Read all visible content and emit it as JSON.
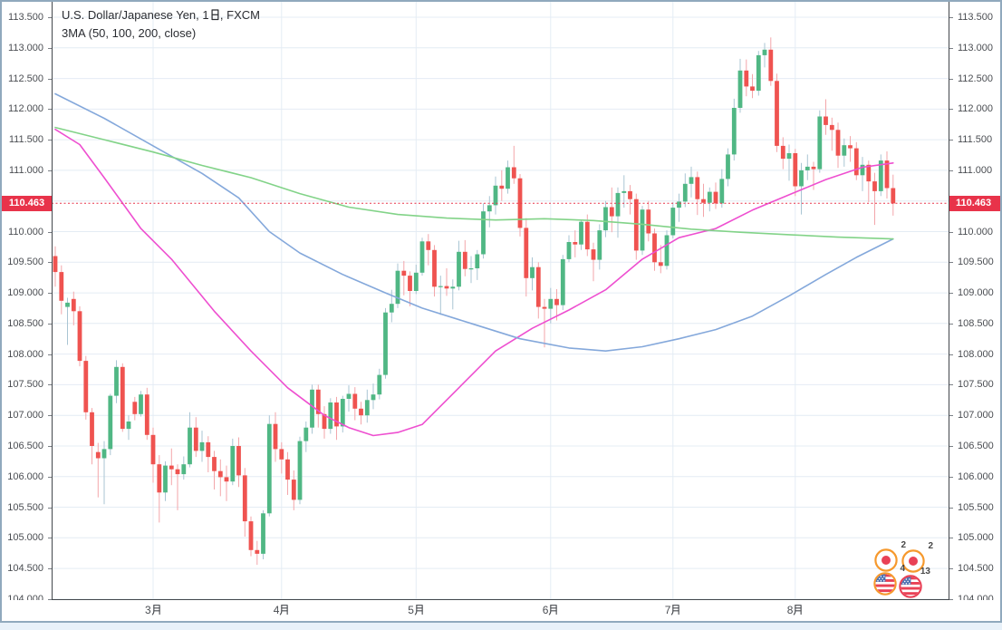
{
  "widget": {
    "title_line1": "U.S. Dollar/Japanese Yen, 1日, FXCM",
    "title_line2": "3MA (50, 100, 200, close)"
  },
  "colors": {
    "up_body": "#50b784",
    "down_body": "#ef5350",
    "up_wick": "#a9c5d3",
    "down_wick": "#f3a6aa",
    "ma50": "#ee4fd0",
    "ma100": "#84a8db",
    "ma200": "#82d388",
    "grid": "#e4ecf4",
    "axis_line": "#43474c",
    "axis_text": "#4a4d52",
    "price_line": "#e8334a",
    "title_text": "#2a2c31",
    "frame_border": "#90a9bd",
    "page_bg": "#e8f1f9"
  },
  "chart_data": {
    "type": "candlestick",
    "title": "U.S. Dollar/Japanese Yen, 1日, FXCM",
    "indicator": "3MA (50, 100, 200, close)",
    "last_price": 110.463,
    "last_price_label": "110.463",
    "y_axis": {
      "min": 104.0,
      "max": 113.5,
      "step": 0.5,
      "labels": [
        "113.500",
        "113.000",
        "112.500",
        "112.000",
        "111.500",
        "111.000",
        "110.500",
        "110.000",
        "109.500",
        "109.000",
        "108.500",
        "108.000",
        "107.500",
        "107.000",
        "106.500",
        "106.000",
        "105.500",
        "105.000",
        "104.500",
        "104.000"
      ]
    },
    "x_axis": {
      "months": [
        {
          "label": "3月",
          "index": 16
        },
        {
          "label": "4月",
          "index": 37
        },
        {
          "label": "5月",
          "index": 59
        },
        {
          "label": "6月",
          "index": 81
        },
        {
          "label": "7月",
          "index": 101
        },
        {
          "label": "8月",
          "index": 121
        }
      ]
    },
    "candles": [
      [
        109.6,
        109.76,
        109.1,
        109.34
      ],
      [
        109.34,
        109.45,
        108.65,
        108.87
      ],
      [
        108.77,
        108.92,
        108.15,
        108.84
      ],
      [
        108.9,
        109.02,
        108.47,
        108.7
      ],
      [
        108.7,
        108.78,
        107.8,
        107.89
      ],
      [
        107.89,
        107.97,
        106.93,
        107.05
      ],
      [
        107.05,
        107.12,
        106.2,
        106.5
      ],
      [
        106.4,
        106.55,
        105.66,
        106.3
      ],
      [
        106.3,
        106.58,
        105.55,
        106.45
      ],
      [
        106.45,
        107.35,
        106.35,
        107.32
      ],
      [
        107.32,
        107.9,
        107.2,
        107.79
      ],
      [
        107.79,
        107.85,
        106.73,
        106.78
      ],
      [
        106.78,
        107.0,
        106.6,
        106.9
      ],
      [
        107.22,
        107.3,
        106.92,
        107.02
      ],
      [
        107.02,
        107.4,
        106.98,
        107.34
      ],
      [
        107.34,
        107.45,
        106.6,
        106.68
      ],
      [
        106.68,
        106.8,
        105.9,
        106.2
      ],
      [
        106.2,
        106.35,
        105.25,
        105.74
      ],
      [
        105.74,
        106.25,
        105.6,
        106.18
      ],
      [
        106.18,
        106.46,
        105.86,
        106.12
      ],
      [
        106.12,
        106.2,
        105.45,
        106.04
      ],
      [
        106.04,
        106.33,
        105.95,
        106.2
      ],
      [
        106.2,
        107.05,
        106.15,
        106.8
      ],
      [
        106.8,
        106.97,
        106.32,
        106.42
      ],
      [
        106.42,
        106.75,
        106.24,
        106.56
      ],
      [
        106.56,
        106.66,
        106.07,
        106.32
      ],
      [
        106.32,
        106.42,
        105.79,
        106.09
      ],
      [
        106.09,
        106.28,
        105.68,
        105.99
      ],
      [
        105.99,
        106.18,
        105.6,
        105.92
      ],
      [
        105.92,
        106.62,
        105.86,
        106.5
      ],
      [
        106.5,
        106.64,
        105.83,
        106.02
      ],
      [
        106.02,
        106.14,
        105.02,
        105.27
      ],
      [
        105.27,
        105.35,
        104.7,
        104.8
      ],
      [
        104.8,
        104.95,
        104.56,
        104.74
      ],
      [
        104.74,
        105.45,
        104.65,
        105.4
      ],
      [
        105.4,
        107.0,
        105.35,
        106.86
      ],
      [
        106.86,
        107.05,
        106.24,
        106.45
      ],
      [
        106.45,
        106.56,
        106.05,
        106.28
      ],
      [
        106.28,
        106.4,
        105.7,
        105.95
      ],
      [
        105.95,
        106.1,
        105.45,
        105.62
      ],
      [
        105.62,
        106.65,
        105.55,
        106.58
      ],
      [
        106.58,
        106.9,
        106.4,
        106.8
      ],
      [
        106.8,
        107.5,
        106.7,
        107.42
      ],
      [
        107.42,
        107.5,
        106.8,
        107.02
      ],
      [
        107.02,
        107.15,
        106.62,
        106.78
      ],
      [
        106.78,
        107.28,
        106.7,
        107.21
      ],
      [
        107.21,
        107.3,
        106.6,
        106.82
      ],
      [
        106.82,
        107.32,
        106.72,
        107.27
      ],
      [
        107.27,
        107.49,
        107.06,
        107.35
      ],
      [
        107.35,
        107.46,
        106.92,
        107.11
      ],
      [
        107.11,
        107.22,
        106.85,
        107.0
      ],
      [
        107.0,
        107.42,
        106.88,
        107.25
      ],
      [
        107.25,
        107.52,
        107.1,
        107.34
      ],
      [
        107.34,
        107.76,
        107.26,
        107.66
      ],
      [
        107.66,
        108.75,
        107.6,
        108.68
      ],
      [
        108.68,
        109.05,
        108.52,
        108.82
      ],
      [
        108.82,
        109.48,
        108.75,
        109.36
      ],
      [
        109.36,
        109.52,
        108.96,
        109.28
      ],
      [
        109.28,
        109.35,
        108.78,
        109.03
      ],
      [
        109.03,
        109.46,
        108.98,
        109.33
      ],
      [
        109.33,
        109.9,
        109.28,
        109.84
      ],
      [
        109.84,
        109.96,
        109.45,
        109.7
      ],
      [
        109.7,
        109.78,
        108.94,
        109.1
      ],
      [
        109.1,
        109.28,
        108.64,
        109.11
      ],
      [
        109.11,
        109.4,
        108.95,
        109.07
      ],
      [
        109.07,
        109.22,
        108.73,
        109.1
      ],
      [
        109.1,
        109.85,
        109.04,
        109.67
      ],
      [
        109.67,
        109.86,
        109.27,
        109.39
      ],
      [
        109.39,
        109.6,
        109.16,
        109.4
      ],
      [
        109.4,
        109.7,
        109.21,
        109.63
      ],
      [
        109.63,
        110.46,
        109.56,
        110.33
      ],
      [
        110.33,
        110.58,
        110.07,
        110.43
      ],
      [
        110.43,
        110.9,
        110.28,
        110.75
      ],
      [
        110.75,
        111.0,
        110.5,
        110.7
      ],
      [
        110.7,
        111.16,
        110.62,
        111.05
      ],
      [
        111.05,
        111.4,
        110.78,
        110.87
      ],
      [
        110.87,
        110.94,
        109.92,
        110.06
      ],
      [
        110.06,
        110.22,
        108.94,
        109.24
      ],
      [
        109.24,
        109.58,
        109.04,
        109.42
      ],
      [
        109.42,
        109.5,
        108.58,
        108.77
      ],
      [
        108.77,
        108.9,
        108.11,
        108.74
      ],
      [
        108.74,
        109.08,
        108.5,
        108.9
      ],
      [
        108.9,
        109.06,
        108.55,
        108.8
      ],
      [
        108.8,
        109.62,
        108.72,
        109.55
      ],
      [
        109.55,
        109.94,
        109.5,
        109.83
      ],
      [
        109.83,
        110.02,
        109.58,
        109.79
      ],
      [
        109.79,
        110.2,
        109.7,
        110.16
      ],
      [
        110.16,
        110.28,
        109.6,
        109.71
      ],
      [
        109.71,
        109.82,
        109.19,
        109.54
      ],
      [
        109.54,
        110.12,
        109.38,
        110.02
      ],
      [
        110.02,
        110.5,
        109.91,
        110.4
      ],
      [
        110.4,
        110.72,
        109.99,
        110.25
      ],
      [
        110.25,
        110.72,
        109.9,
        110.63
      ],
      [
        110.63,
        110.92,
        110.39,
        110.66
      ],
      [
        110.66,
        110.76,
        110.28,
        110.53
      ],
      [
        110.53,
        110.62,
        109.54,
        109.69
      ],
      [
        109.69,
        110.42,
        109.62,
        110.36
      ],
      [
        110.36,
        110.5,
        109.84,
        109.97
      ],
      [
        109.97,
        110.05,
        109.36,
        109.5
      ],
      [
        109.5,
        109.78,
        109.32,
        109.44
      ],
      [
        109.44,
        110.02,
        109.38,
        109.94
      ],
      [
        109.94,
        110.48,
        109.89,
        110.39
      ],
      [
        110.39,
        110.62,
        110.16,
        110.49
      ],
      [
        110.49,
        110.95,
        110.4,
        110.78
      ],
      [
        110.78,
        111.06,
        110.56,
        110.89
      ],
      [
        110.89,
        110.98,
        110.27,
        110.53
      ],
      [
        110.53,
        110.78,
        110.24,
        110.47
      ],
      [
        110.47,
        110.72,
        110.33,
        110.65
      ],
      [
        110.65,
        110.8,
        110.37,
        110.46
      ],
      [
        110.46,
        111.02,
        110.39,
        110.86
      ],
      [
        110.86,
        111.36,
        110.74,
        111.26
      ],
      [
        111.26,
        112.17,
        111.16,
        112.02
      ],
      [
        112.02,
        112.82,
        111.94,
        112.63
      ],
      [
        112.63,
        112.81,
        112.21,
        112.37
      ],
      [
        112.37,
        112.57,
        112.18,
        112.3
      ],
      [
        112.3,
        112.95,
        112.22,
        112.88
      ],
      [
        112.88,
        113.08,
        112.68,
        112.97
      ],
      [
        112.97,
        113.17,
        112.38,
        112.46
      ],
      [
        112.46,
        112.58,
        111.3,
        111.4
      ],
      [
        111.4,
        111.54,
        111.02,
        111.19
      ],
      [
        111.19,
        111.42,
        110.83,
        111.28
      ],
      [
        111.28,
        111.35,
        110.58,
        110.74
      ],
      [
        110.74,
        111.12,
        110.28,
        111.0
      ],
      [
        111.0,
        111.26,
        110.84,
        111.06
      ],
      [
        111.06,
        111.14,
        110.68,
        111.02
      ],
      [
        111.02,
        111.98,
        110.96,
        111.88
      ],
      [
        111.88,
        112.16,
        111.58,
        111.74
      ],
      [
        111.74,
        111.86,
        111.32,
        111.66
      ],
      [
        111.66,
        111.78,
        111.04,
        111.24
      ],
      [
        111.24,
        111.52,
        111.06,
        111.41
      ],
      [
        111.41,
        111.56,
        111.14,
        111.36
      ],
      [
        111.36,
        111.46,
        110.84,
        110.92
      ],
      [
        110.92,
        111.22,
        110.66,
        111.09
      ],
      [
        111.09,
        111.16,
        110.48,
        110.82
      ],
      [
        110.82,
        110.96,
        110.11,
        110.66
      ],
      [
        110.66,
        111.26,
        110.58,
        111.16
      ],
      [
        111.16,
        111.31,
        110.54,
        110.71
      ],
      [
        110.71,
        110.93,
        110.26,
        110.46
      ]
    ],
    "moving_averages": [
      {
        "name": "MA 50",
        "period": 50,
        "color": "#ee4fd0",
        "points": [
          [
            0,
            111.67
          ],
          [
            4,
            111.42
          ],
          [
            8,
            110.88
          ],
          [
            14,
            110.05
          ],
          [
            19,
            109.55
          ],
          [
            26,
            108.7
          ],
          [
            32,
            108.05
          ],
          [
            38,
            107.45
          ],
          [
            44,
            107.0
          ],
          [
            48,
            106.8
          ],
          [
            52,
            106.67
          ],
          [
            56,
            106.72
          ],
          [
            60,
            106.85
          ],
          [
            66,
            107.45
          ],
          [
            72,
            108.05
          ],
          [
            78,
            108.42
          ],
          [
            84,
            108.72
          ],
          [
            90,
            109.05
          ],
          [
            96,
            109.55
          ],
          [
            102,
            109.9
          ],
          [
            108,
            110.05
          ],
          [
            114,
            110.35
          ],
          [
            120,
            110.6
          ],
          [
            126,
            110.85
          ],
          [
            132,
            111.05
          ],
          [
            137,
            111.12
          ]
        ]
      },
      {
        "name": "MA 100",
        "period": 100,
        "color": "#84a8db",
        "points": [
          [
            0,
            112.25
          ],
          [
            8,
            111.85
          ],
          [
            16,
            111.4
          ],
          [
            24,
            110.95
          ],
          [
            30,
            110.55
          ],
          [
            35,
            110.0
          ],
          [
            40,
            109.65
          ],
          [
            47,
            109.3
          ],
          [
            54,
            109.0
          ],
          [
            60,
            108.75
          ],
          [
            68,
            108.5
          ],
          [
            76,
            108.25
          ],
          [
            84,
            108.1
          ],
          [
            90,
            108.05
          ],
          [
            96,
            108.12
          ],
          [
            102,
            108.25
          ],
          [
            108,
            108.4
          ],
          [
            114,
            108.62
          ],
          [
            120,
            108.95
          ],
          [
            126,
            109.3
          ],
          [
            131,
            109.58
          ],
          [
            137,
            109.88
          ]
        ]
      },
      {
        "name": "MA 200",
        "period": 200,
        "color": "#82d388",
        "points": [
          [
            0,
            111.7
          ],
          [
            8,
            111.5
          ],
          [
            16,
            111.3
          ],
          [
            24,
            111.08
          ],
          [
            32,
            110.88
          ],
          [
            40,
            110.62
          ],
          [
            48,
            110.4
          ],
          [
            56,
            110.28
          ],
          [
            64,
            110.22
          ],
          [
            72,
            110.19
          ],
          [
            80,
            110.21
          ],
          [
            88,
            110.18
          ],
          [
            96,
            110.12
          ],
          [
            104,
            110.04
          ],
          [
            112,
            109.99
          ],
          [
            120,
            109.95
          ],
          [
            128,
            109.91
          ],
          [
            137,
            109.88
          ]
        ]
      }
    ],
    "events": [
      {
        "flag": "japan",
        "count": "2",
        "ring": "#f6921e"
      },
      {
        "flag": "japan",
        "count": "2",
        "ring": "#f6921e"
      },
      {
        "flag": "us",
        "count": "4",
        "ring": "#f6921e"
      },
      {
        "flag": "us",
        "count": "13",
        "ring": "#e8334a"
      }
    ]
  }
}
